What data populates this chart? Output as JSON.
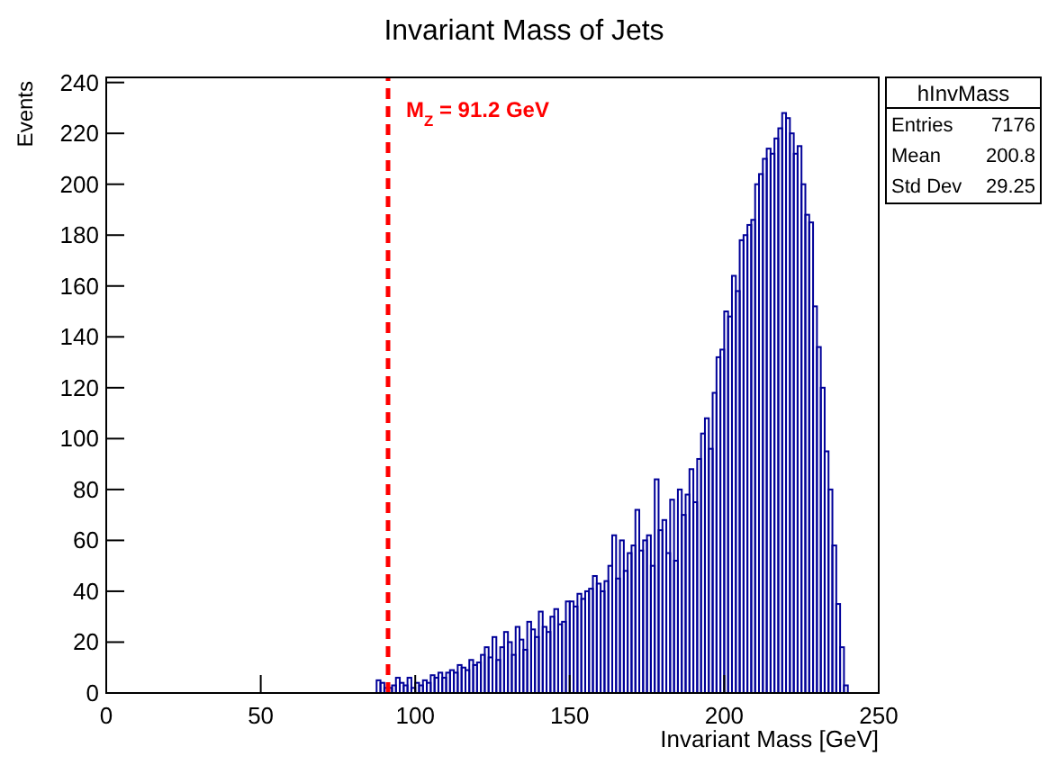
{
  "chart_data": {
    "type": "histogram",
    "title": "Invariant Mass of Jets",
    "xlabel": "Invariant Mass [GeV]",
    "ylabel": "Events",
    "color": "#000099",
    "bins": [
      87.5,
      88.75,
      90,
      91.25,
      92.5,
      93.75,
      95,
      96.25,
      97.5,
      98.75,
      100,
      101.25,
      102.5,
      103.75,
      105,
      106.25,
      107.5,
      108.75,
      110,
      111.25,
      112.5,
      113.75,
      115,
      116.25,
      117.5,
      118.75,
      120,
      121.25,
      122.5,
      123.75,
      125,
      126.25,
      127.5,
      128.75,
      130,
      131.25,
      132.5,
      133.75,
      135,
      136.25,
      137.5,
      138.75,
      140,
      141.25,
      142.5,
      143.75,
      145,
      146.25,
      147.5,
      148.75,
      150,
      151.25,
      152.5,
      153.75,
      155,
      156.25,
      157.5,
      158.75,
      160,
      161.25,
      162.5,
      163.75,
      165,
      166.25,
      167.5,
      168.75,
      170,
      171.25,
      172.5,
      173.75,
      175,
      176.25,
      177.5,
      178.75,
      180,
      181.25,
      182.5,
      183.75,
      185,
      186.25,
      187.5,
      188.75,
      190,
      191.25,
      192.5,
      193.75,
      195,
      196.25,
      197.5,
      198.75,
      200,
      201.25,
      202.5,
      203.75,
      205,
      206.25,
      207.5,
      208.75,
      210,
      211.25,
      212.5,
      213.75,
      215,
      216.25,
      217.5,
      218.75,
      220,
      221.25,
      222.5,
      223.75,
      225,
      226.25,
      227.5,
      228.75,
      230,
      231.25,
      232.5,
      233.75,
      235,
      236.25,
      237.5,
      238.75,
      240
    ],
    "values": [
      5,
      4,
      2,
      2,
      3,
      6,
      4,
      3,
      6,
      2,
      4,
      3,
      5,
      4,
      7,
      6,
      8,
      6,
      8,
      9,
      8,
      11,
      10,
      9,
      13,
      11,
      12,
      15,
      18,
      14,
      22,
      13,
      18,
      24,
      20,
      15,
      26,
      21,
      17,
      28,
      25,
      22,
      32,
      26,
      24,
      30,
      33,
      27,
      28,
      36,
      36,
      34,
      39,
      37,
      40,
      41,
      46,
      43,
      40,
      44,
      50,
      62,
      45,
      60,
      48,
      55,
      58,
      72,
      56,
      60,
      62,
      50,
      84,
      64,
      68,
      55,
      76,
      52,
      80,
      70,
      78,
      88,
      75,
      92,
      102,
      108,
      96,
      118,
      132,
      135,
      150,
      148,
      164,
      158,
      178,
      180,
      184,
      186,
      200,
      204,
      210,
      214,
      212,
      218,
      222,
      228,
      226,
      220,
      212,
      215,
      200,
      188,
      185,
      152,
      136,
      120,
      95,
      80,
      58,
      35,
      18,
      3
    ],
    "xlim": [
      0,
      250
    ],
    "xticks": [
      0,
      50,
      100,
      150,
      200,
      250
    ],
    "ylim": [
      0,
      242
    ],
    "yticks": [
      0,
      20,
      40,
      60,
      80,
      100,
      120,
      140,
      160,
      180,
      200,
      220,
      240
    ],
    "ref_lines": [
      {
        "axis": "x",
        "value": 91.2,
        "label": "M$_{Z}$ = 91.2 GeV",
        "color": "#ff0000",
        "line_style": "dashed"
      }
    ],
    "annotations": [
      "hInvMass",
      "Entries 7176",
      "Mean 200.8",
      "Std Dev 29.25"
    ],
    "grid": false
  }
}
